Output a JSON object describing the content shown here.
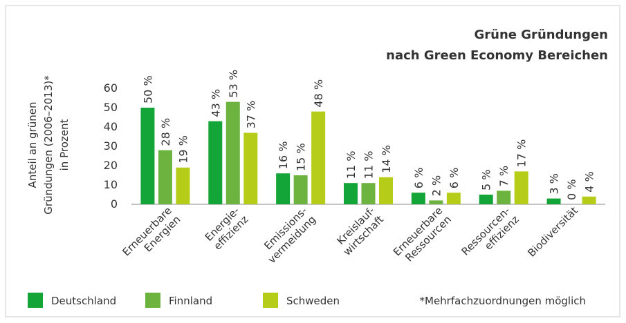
{
  "chart_data": {
    "type": "bar",
    "title": [
      "Grüne Gründungen",
      "nach Green Economy Bereichen"
    ],
    "title_color": "#e2231a",
    "ylabel": [
      "Anteil an grünen",
      "Gründungen (2006–2013)*",
      "in Prozent"
    ],
    "categories": [
      [
        "Erneuerbare",
        "Energien"
      ],
      [
        "Energie-",
        "effizienz"
      ],
      [
        "Emissions-",
        "vermeidung"
      ],
      [
        "Kreislauf-",
        "wirtschaft"
      ],
      [
        "Erneuerbare",
        "Ressourcen"
      ],
      [
        "Ressourcen-",
        "effizienz"
      ],
      [
        "Biodiversität"
      ]
    ],
    "series": [
      {
        "name": "Deutschland",
        "color": "#13a538",
        "values": [
          50,
          43,
          16,
          11,
          6,
          5,
          3
        ],
        "value_labels": [
          "50 %",
          "43 %",
          "16 %",
          "11 %",
          "6 %",
          "5 %",
          "3 %"
        ]
      },
      {
        "name": "Finnland",
        "color": "#6db33f",
        "values": [
          28,
          53,
          15,
          11,
          2,
          7,
          0
        ],
        "value_labels": [
          "28 %",
          "53 %",
          "15 %",
          "11 %",
          "2 %",
          "7 %",
          "0 %"
        ]
      },
      {
        "name": "Schweden",
        "color": "#b5cc18",
        "values": [
          19,
          37,
          48,
          14,
          6,
          17,
          4
        ],
        "value_labels": [
          "19 %",
          "37 %",
          "48 %",
          "14 %",
          "6 %",
          "17 %",
          "4 %"
        ]
      }
    ],
    "ylim": [
      0,
      60
    ],
    "yticks": [
      0,
      10,
      20,
      30,
      40,
      50,
      60
    ],
    "grid": false,
    "legend": "bottom",
    "footnote": "*Mehrfachzuordnungen möglich"
  }
}
